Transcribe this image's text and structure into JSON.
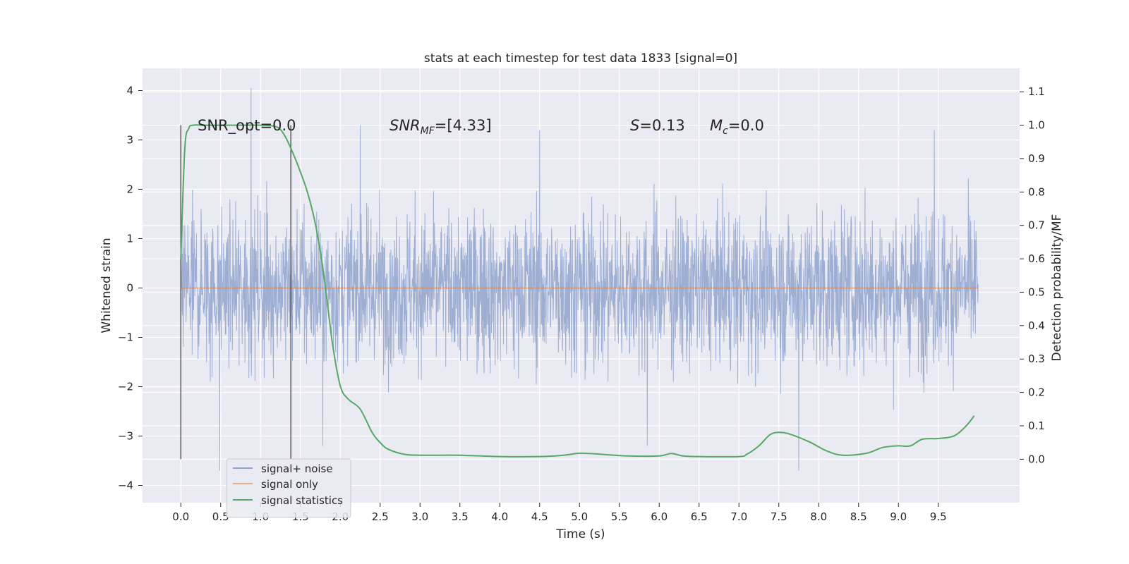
{
  "chart_data": {
    "type": "line",
    "title": "stats at each timestep for test data 1833 [signal=0]",
    "xlabel": "Time (s)",
    "ylabel_left": "Whitened strain",
    "ylabel_right": "Detection probability/MF",
    "xlim": [
      -0.48,
      10.52
    ],
    "ylim_left": [
      -4.35,
      4.45
    ],
    "ylim_right": [
      -0.13,
      1.17
    ],
    "x_ticks": [
      "0.0",
      "0.5",
      "1.0",
      "1.5",
      "2.0",
      "2.5",
      "3.0",
      "3.5",
      "4.0",
      "4.5",
      "5.0",
      "5.5",
      "6.0",
      "6.5",
      "7.0",
      "7.5",
      "8.0",
      "8.5",
      "9.0",
      "9.5"
    ],
    "y_ticks_left": [
      "−4",
      "−3",
      "−2",
      "−1",
      "0",
      "1",
      "2",
      "3",
      "4"
    ],
    "y_ticks_right": [
      "0.0",
      "0.1",
      "0.2",
      "0.3",
      "0.4",
      "0.5",
      "0.6",
      "0.7",
      "0.8",
      "0.9",
      "1.0",
      "1.1"
    ],
    "grid": true,
    "legend_position": "lower-left",
    "annotations": {
      "snr_opt": "SNR_opt=0.0",
      "snr_mf_main": "SNR",
      "snr_mf_sub": "MF",
      "snr_mf_value": "=[4.33]",
      "s_main": "S",
      "s_value": "=0.13",
      "mc_main": "M",
      "mc_sub": "c",
      "mc_value": "=0.0"
    },
    "vertical_markers_x": [
      0.0,
      1.38
    ],
    "series": [
      {
        "name": "signal+ noise",
        "color": "#8fa3cc",
        "axis": "left",
        "description_range": [
          -3.7,
          4.05
        ],
        "x_range": [
          0.0,
          10.0
        ],
        "peaks": [
          {
            "x": 0.49,
            "y": -3.7
          },
          {
            "x": 0.88,
            "y": 4.05
          },
          {
            "x": 1.78,
            "y": -3.2
          },
          {
            "x": 2.25,
            "y": 3.3
          },
          {
            "x": 4.5,
            "y": 3.2
          },
          {
            "x": 5.85,
            "y": -3.2
          },
          {
            "x": 7.75,
            "y": -4.0
          },
          {
            "x": 9.45,
            "y": 3.2
          }
        ]
      },
      {
        "name": "signal only",
        "color": "#dd8452",
        "axis": "left",
        "x": [
          0.0,
          10.0
        ],
        "y": [
          0.0,
          0.0
        ]
      },
      {
        "name": "signal statistics",
        "color": "#55a868",
        "axis": "right",
        "x": [
          0.0,
          0.05,
          0.1,
          0.15,
          0.3,
          0.5,
          0.8,
          1.0,
          1.2,
          1.3,
          1.4,
          1.5,
          1.6,
          1.7,
          1.8,
          1.9,
          2.0,
          2.1,
          2.25,
          2.4,
          2.5,
          2.6,
          2.8,
          3.0,
          3.5,
          4.0,
          4.5,
          4.8,
          5.0,
          5.2,
          5.6,
          6.0,
          6.15,
          6.3,
          6.5,
          7.0,
          7.1,
          7.25,
          7.4,
          7.55,
          7.7,
          7.9,
          8.1,
          8.3,
          8.6,
          8.8,
          9.0,
          9.15,
          9.3,
          9.5,
          9.7,
          9.85,
          9.95
        ],
        "y": [
          0.6,
          0.93,
          0.99,
          1.0,
          1.0,
          1.0,
          1.0,
          1.0,
          0.995,
          0.97,
          0.92,
          0.86,
          0.79,
          0.69,
          0.54,
          0.35,
          0.22,
          0.18,
          0.15,
          0.08,
          0.05,
          0.03,
          0.015,
          0.012,
          0.012,
          0.008,
          0.008,
          0.012,
          0.018,
          0.016,
          0.01,
          0.01,
          0.017,
          0.01,
          0.008,
          0.008,
          0.015,
          0.04,
          0.075,
          0.08,
          0.07,
          0.05,
          0.025,
          0.012,
          0.018,
          0.035,
          0.04,
          0.04,
          0.06,
          0.062,
          0.07,
          0.1,
          0.13
        ]
      }
    ]
  }
}
